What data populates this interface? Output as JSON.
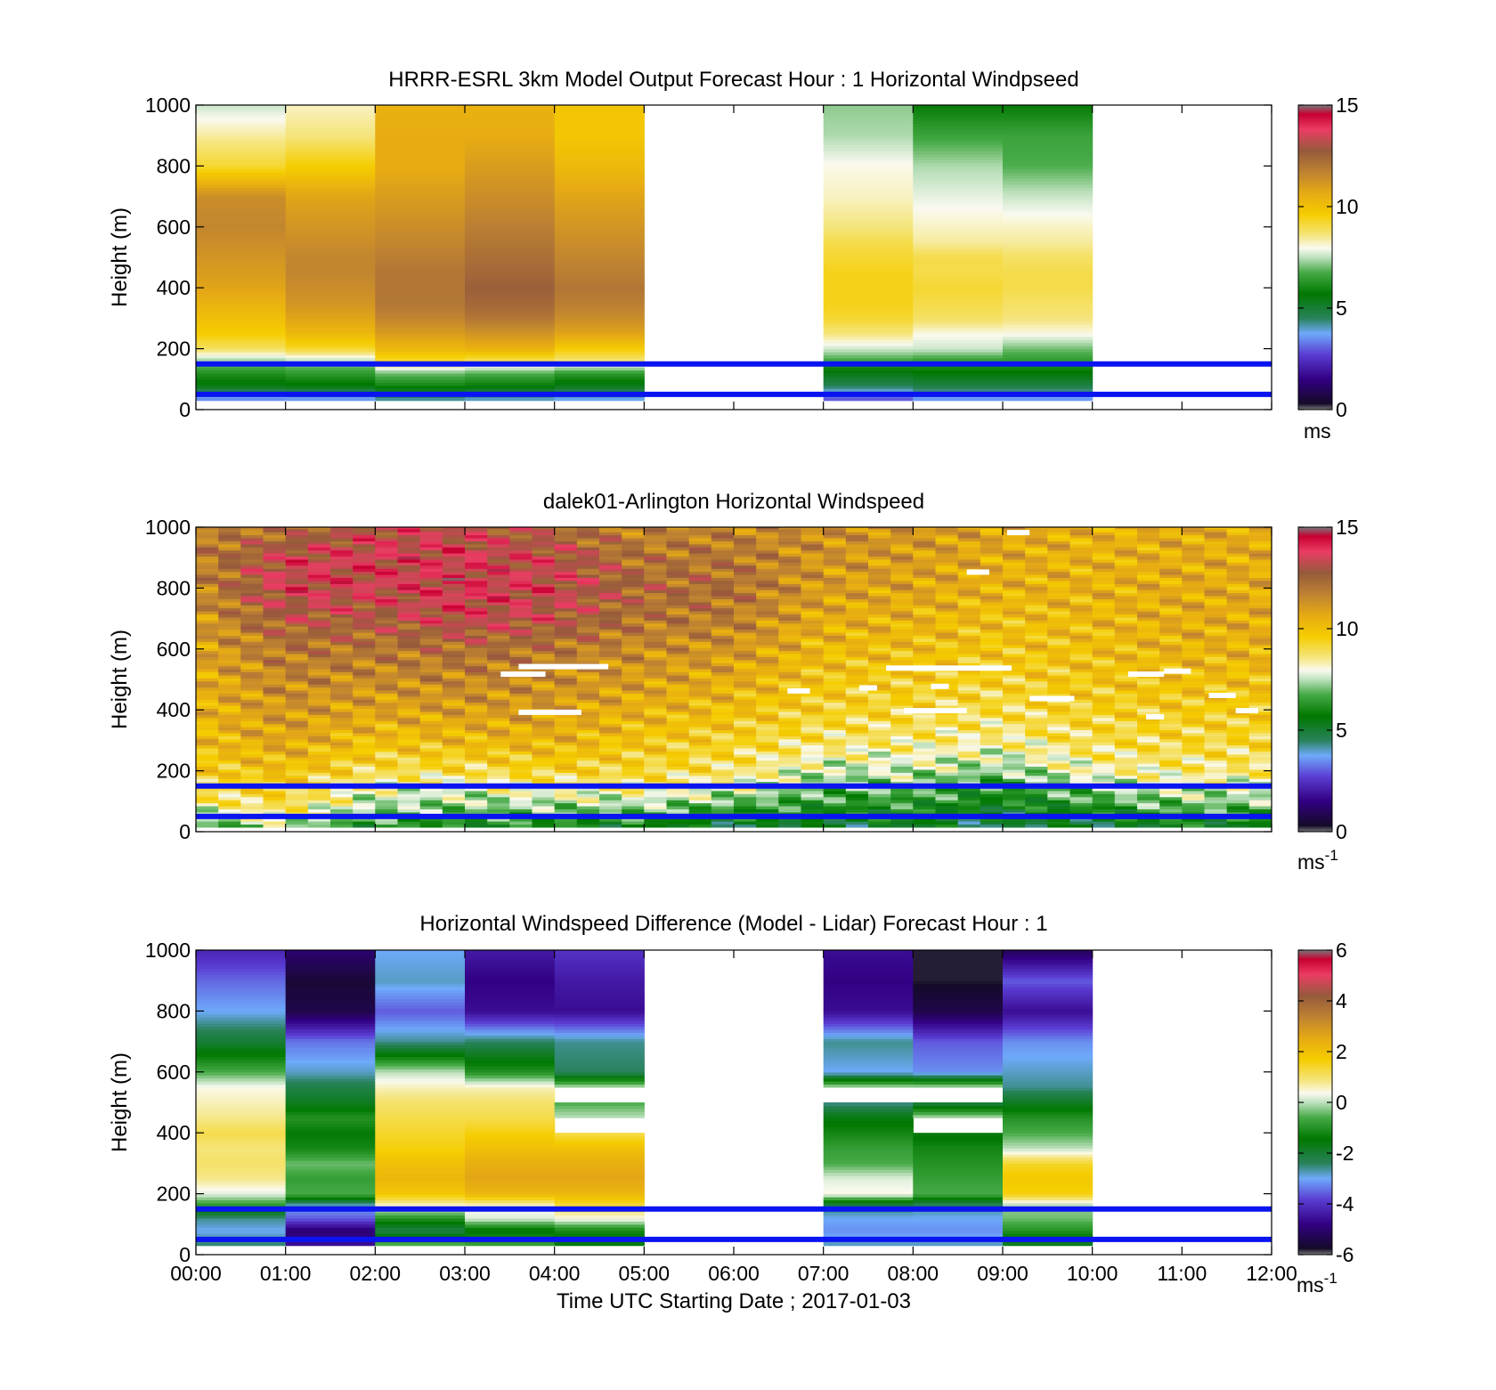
{
  "figure": {
    "xlabel": "Time UTC  Starting Date ; 2017-01-03",
    "x_ticks": [
      "00:00",
      "01:00",
      "02:00",
      "03:00",
      "04:00",
      "05:00",
      "06:00",
      "07:00",
      "08:00",
      "09:00",
      "10:00",
      "11:00",
      "12:00"
    ]
  },
  "chart_data": [
    {
      "type": "heatmap",
      "title": "HRRR-ESRL 3km Model Output   Forecast Hour : 1 Horizontal Windpseed",
      "ylabel": "Height (m)",
      "xlim_hours": [
        0,
        12
      ],
      "ylim": [
        0,
        1000
      ],
      "y_ticks": [
        "0",
        "200",
        "400",
        "600",
        "800",
        "1000"
      ],
      "colorbar": {
        "ticks": [
          "0",
          "5",
          "10",
          "15"
        ],
        "range": [
          0,
          15
        ],
        "unit": "ms"
      },
      "reference_lines_m": [
        50,
        150
      ],
      "time_bins_hours": [
        0,
        1,
        2,
        3,
        4,
        7,
        8,
        9
      ],
      "height_levels_m": [
        40,
        80,
        120,
        160,
        200,
        250,
        300,
        350,
        400,
        450,
        500,
        550,
        600,
        700,
        800,
        900,
        1000
      ],
      "values": [
        [
          3.5,
          5.5,
          6.2,
          7.2,
          8.8,
          9.6,
          10.0,
          10.4,
          10.8,
          11.0,
          11.2,
          11.4,
          11.6,
          11.4,
          9.2,
          8.4,
          7.6
        ],
        [
          3.6,
          5.6,
          6.4,
          7.4,
          9.2,
          10.2,
          10.8,
          11.2,
          11.4,
          11.6,
          11.6,
          11.4,
          11.2,
          10.8,
          9.6,
          8.6,
          8.2
        ],
        [
          4.2,
          6.0,
          7.0,
          9.2,
          10.2,
          11.0,
          11.6,
          12.0,
          12.0,
          12.0,
          11.8,
          11.6,
          11.4,
          11.0,
          10.6,
          10.6,
          10.4
        ],
        [
          4.0,
          5.8,
          6.8,
          8.8,
          10.4,
          11.2,
          12.0,
          12.4,
          12.6,
          12.4,
          12.2,
          12.0,
          11.8,
          11.4,
          11.0,
          10.6,
          10.4
        ],
        [
          3.8,
          5.4,
          6.4,
          8.6,
          9.6,
          10.8,
          11.4,
          11.8,
          12.0,
          11.8,
          11.6,
          11.4,
          11.2,
          10.8,
          10.2,
          9.8,
          9.8
        ],
        [
          3.0,
          4.6,
          5.4,
          6.6,
          7.6,
          8.6,
          9.2,
          9.4,
          9.4,
          9.4,
          9.2,
          9.0,
          8.6,
          8.2,
          8.0,
          7.4,
          7.2
        ],
        [
          3.6,
          4.8,
          5.6,
          6.4,
          7.6,
          8.0,
          8.8,
          9.0,
          9.2,
          9.0,
          9.0,
          8.4,
          8.2,
          7.8,
          7.4,
          6.6,
          5.8
        ],
        [
          3.6,
          4.8,
          5.6,
          6.4,
          7.0,
          8.0,
          8.6,
          8.8,
          9.0,
          9.0,
          8.8,
          8.4,
          8.2,
          7.6,
          6.8,
          6.6,
          5.8
        ]
      ]
    },
    {
      "type": "heatmap",
      "title": "dalek01-Arlington  Horizontal Windspeed",
      "ylabel": "Height (m)",
      "xlim_hours": [
        0,
        12
      ],
      "ylim": [
        0,
        1000
      ],
      "y_ticks": [
        "0",
        "200",
        "400",
        "600",
        "800",
        "1000"
      ],
      "colorbar": {
        "ticks": [
          "0",
          "5",
          "10",
          "15"
        ],
        "range": [
          0,
          15
        ],
        "unit": "ms",
        "unit_exponent": "-1"
      },
      "reference_lines_m": [
        50,
        150
      ],
      "time_step_hours": 0.25,
      "time_start_hours": 0,
      "time_end_hours": 11.8,
      "height_profile_m": [
        20,
        60,
        100,
        150,
        200,
        300,
        400,
        500,
        600,
        700,
        800,
        900,
        1000
      ],
      "hourly_profiles": [
        {
          "hour": 0,
          "values": [
            6.5,
            7.5,
            8.5,
            9.0,
            9.5,
            10.0,
            10.3,
            10.5,
            10.8,
            11.0,
            11.4,
            11.6,
            11.8
          ]
        },
        {
          "hour": 1,
          "values": [
            7.5,
            8.5,
            9.2,
            9.5,
            10.0,
            10.8,
            11.2,
            11.6,
            12.0,
            12.8,
            13.6,
            13.4,
            12.0
          ]
        },
        {
          "hour": 2,
          "values": [
            6.0,
            7.0,
            7.5,
            8.0,
            9.0,
            10.0,
            10.8,
            11.4,
            12.0,
            12.8,
            13.4,
            13.6,
            13.2
          ]
        },
        {
          "hour": 3,
          "values": [
            6.0,
            6.8,
            7.4,
            8.0,
            9.0,
            10.2,
            11.0,
            11.6,
            12.2,
            13.4,
            13.8,
            13.6,
            13.2
          ]
        },
        {
          "hour": 4,
          "values": [
            6.0,
            6.8,
            7.6,
            8.4,
            9.4,
            10.4,
            11.0,
            11.4,
            12.0,
            13.0,
            13.4,
            13.2,
            12.4
          ]
        },
        {
          "hour": 5,
          "values": [
            5.5,
            6.8,
            7.6,
            8.6,
            9.2,
            9.8,
            10.4,
            11.0,
            11.4,
            12.0,
            12.4,
            12.0,
            11.6
          ]
        },
        {
          "hour": 6,
          "values": [
            5.0,
            6.0,
            7.0,
            8.0,
            8.8,
            9.4,
            10.0,
            10.6,
            11.2,
            11.8,
            12.2,
            12.0,
            11.6
          ]
        },
        {
          "hour": 7,
          "values": [
            5.0,
            5.8,
            6.4,
            7.0,
            7.6,
            8.8,
            9.4,
            9.8,
            10.2,
            10.6,
            11.0,
            11.2,
            11.4
          ]
        },
        {
          "hour": 8,
          "values": [
            5.2,
            5.8,
            6.4,
            7.0,
            7.6,
            8.6,
            9.2,
            9.6,
            10.0,
            10.4,
            10.8,
            11.0,
            11.2
          ]
        },
        {
          "hour": 9,
          "values": [
            4.8,
            5.2,
            5.8,
            6.2,
            7.2,
            8.4,
            9.0,
            9.4,
            9.8,
            10.0,
            10.4,
            10.6,
            10.8
          ]
        },
        {
          "hour": 10,
          "values": [
            5.0,
            5.6,
            6.6,
            7.4,
            8.2,
            9.0,
            9.4,
            9.8,
            10.0,
            10.2,
            10.4,
            10.4,
            10.4
          ]
        },
        {
          "hour": 11,
          "values": [
            5.5,
            6.5,
            7.2,
            7.8,
            8.6,
            9.2,
            9.6,
            10.0,
            10.4,
            10.6,
            10.6,
            10.6,
            10.6
          ]
        }
      ],
      "missing_segments": [
        {
          "t0": 3.4,
          "t1": 3.9,
          "h": 520
        },
        {
          "t0": 3.6,
          "t1": 4.6,
          "h": 545
        },
        {
          "t0": 3.6,
          "t1": 4.3,
          "h": 395
        },
        {
          "t0": 6.6,
          "t1": 6.85,
          "h": 465
        },
        {
          "t0": 7.4,
          "t1": 7.6,
          "h": 475
        },
        {
          "t0": 7.7,
          "t1": 9.1,
          "h": 540
        },
        {
          "t0": 7.9,
          "t1": 8.6,
          "h": 400
        },
        {
          "t0": 8.2,
          "t1": 8.4,
          "h": 480
        },
        {
          "t0": 8.6,
          "t1": 8.85,
          "h": 855
        },
        {
          "t0": 9.05,
          "t1": 9.3,
          "h": 985
        },
        {
          "t0": 9.3,
          "t1": 9.8,
          "h": 440
        },
        {
          "t0": 10.4,
          "t1": 10.8,
          "h": 520
        },
        {
          "t0": 10.8,
          "t1": 11.1,
          "h": 530
        },
        {
          "t0": 10.6,
          "t1": 10.8,
          "h": 380
        },
        {
          "t0": 11.3,
          "t1": 11.6,
          "h": 450
        },
        {
          "t0": 11.6,
          "t1": 11.85,
          "h": 400
        }
      ]
    },
    {
      "type": "heatmap",
      "title": "Horizontal Windspeed Difference (Model - Lidar) Forecast Hour : 1",
      "ylabel": "Height (m)",
      "xlim_hours": [
        0,
        12
      ],
      "ylim": [
        0,
        1000
      ],
      "y_ticks": [
        "0",
        "200",
        "400",
        "600",
        "800",
        "1000"
      ],
      "colorbar": {
        "ticks": [
          "-6",
          "-4",
          "-2",
          "0",
          "2",
          "4",
          "6"
        ],
        "range": [
          -6,
          6
        ],
        "unit": "ms",
        "unit_exponent": "-1"
      },
      "reference_lines_m": [
        50,
        150
      ],
      "time_bins_hours": [
        0,
        1,
        2,
        3,
        4,
        7,
        8,
        9
      ],
      "height_levels_m": [
        40,
        80,
        120,
        160,
        200,
        250,
        300,
        350,
        400,
        450,
        500,
        550,
        600,
        700,
        800,
        900,
        1000
      ],
      "values": [
        [
          -2.5,
          -3.0,
          -2.6,
          -1.0,
          0.2,
          0.8,
          1.0,
          0.9,
          1.2,
          0.8,
          0.6,
          0.4,
          -0.6,
          -2.0,
          -3.0,
          -3.5,
          -4.2
        ],
        [
          -4.6,
          -5.0,
          -3.6,
          -3.0,
          -0.6,
          -0.8,
          -0.4,
          -1.2,
          -1.4,
          -1.0,
          -1.8,
          -2.2,
          -2.8,
          -3.4,
          -5.4,
          -5.6,
          -5.0
        ],
        [
          -0.6,
          -2.2,
          -1.0,
          0.4,
          1.8,
          2.2,
          2.0,
          1.6,
          1.4,
          1.2,
          1.0,
          0.6,
          0.0,
          -2.6,
          -3.6,
          -2.8,
          -3.0
        ],
        [
          -0.8,
          -1.6,
          0.2,
          0.4,
          2.2,
          2.6,
          2.4,
          2.0,
          1.6,
          1.2,
          1.0,
          0.6,
          -1.0,
          -2.4,
          -4.6,
          -4.8,
          -4.4
        ],
        [
          -1.6,
          -1.2,
          0.4,
          1.2,
          2.2,
          2.6,
          2.4,
          2.0,
          1.2,
          null,
          -0.6,
          null,
          -2.4,
          -2.6,
          -4.6,
          -4.4,
          -4.0
        ],
        [
          -2.8,
          -3.2,
          -3.0,
          -2.4,
          0.4,
          0.2,
          -0.6,
          -0.8,
          -1.2,
          -1.6,
          -2.6,
          null,
          -3.0,
          -2.6,
          -4.6,
          -4.8,
          -4.6
        ],
        [
          -2.8,
          -3.2,
          -3.0,
          -2.6,
          -0.6,
          -0.8,
          -1.0,
          -1.2,
          -1.6,
          null,
          -2.2,
          null,
          -3.2,
          -3.6,
          -5.4,
          -5.8,
          -5.8
        ],
        [
          -1.8,
          -1.0,
          -0.4,
          -0.2,
          1.6,
          1.8,
          1.4,
          0.0,
          -0.6,
          -1.0,
          -1.8,
          -2.6,
          -2.8,
          -3.2,
          -4.6,
          -3.6,
          -5.2
        ]
      ]
    }
  ]
}
